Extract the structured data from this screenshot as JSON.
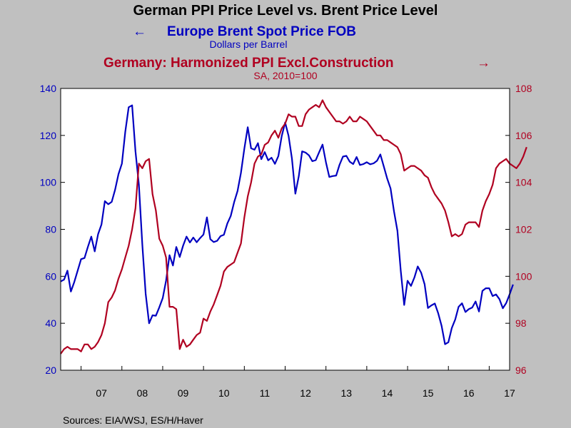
{
  "colors": {
    "background": "#c0c0c0",
    "plot_background": "#ffffff",
    "brent": "#0000c0",
    "ppi": "#b00020",
    "text": "#000000"
  },
  "chart_data": {
    "type": "line",
    "title": "German PPI Price Level vs. Brent Price Level",
    "source": "Sources:  EIA/WSJ, ES/H/Haver",
    "x_tick_labels": [
      "07",
      "08",
      "09",
      "10",
      "11",
      "12",
      "13",
      "14",
      "15",
      "16",
      "17"
    ],
    "x_range": [
      "2006-07",
      "2017-07"
    ],
    "left_axis": {
      "ticks": [
        20,
        40,
        60,
        80,
        100,
        120,
        140
      ],
      "ylim": [
        20,
        140
      ]
    },
    "right_axis": {
      "ticks": [
        96,
        98,
        100,
        102,
        104,
        106,
        108
      ],
      "ylim": [
        96,
        108
      ]
    },
    "series": [
      {
        "name": "Europe Brent Spot Price FOB",
        "unit": "Dollars per Barrel",
        "legend_arrow": "←",
        "axis": "left",
        "color": "#0000c0",
        "start": "2006-07",
        "values": [
          57.8,
          58.6,
          62.4,
          53.5,
          57.6,
          62.4,
          67.3,
          67.8,
          72.5,
          76.9,
          70.6,
          77.9,
          82.1,
          92.0,
          90.7,
          91.7,
          96.8,
          103.5,
          108.0,
          121.5,
          132.0,
          132.8,
          113.2,
          99.0,
          73.5,
          52.5,
          40.0,
          43.4,
          43.2,
          46.8,
          50.7,
          58.2,
          69.0,
          64.6,
          72.5,
          68.2,
          73.0,
          76.9,
          74.4,
          76.5,
          74.5,
          76.3,
          77.8,
          85.1,
          75.8,
          74.6,
          75.1,
          77.1,
          77.7,
          82.5,
          85.7,
          91.5,
          96.3,
          104.1,
          114.3,
          123.5,
          114.5,
          113.9,
          116.7,
          109.9,
          112.9,
          109.4,
          110.5,
          107.9,
          111.2,
          119.7,
          125.5,
          119.8,
          110.2,
          95.2,
          102.6,
          113.2,
          112.7,
          111.5,
          109.0,
          109.5,
          112.9,
          116.1,
          108.5,
          102.3,
          102.7,
          102.9,
          107.5,
          111.0,
          111.3,
          108.8,
          107.8,
          110.8,
          107.4,
          107.8,
          108.6,
          107.7,
          108.1,
          109.2,
          111.9,
          106.8,
          101.6,
          97.4,
          87.7,
          79.4,
          62.3,
          47.8,
          58.1,
          55.9,
          59.5,
          64.2,
          61.5,
          56.6,
          46.5,
          47.6,
          48.4,
          44.3,
          38.9,
          31.1,
          31.9,
          38.0,
          41.6,
          47.0,
          48.5,
          44.8,
          46.0,
          46.7,
          49.3,
          45.0,
          53.8,
          54.9,
          54.9,
          51.6,
          52.3,
          50.3,
          46.4,
          48.6,
          52.3,
          56.5
        ]
      },
      {
        "name": "Germany: Harmonized PPI Excl.Construction",
        "unit": "SA, 2010=100",
        "legend_arrow": "→",
        "axis": "right",
        "color": "#b00020",
        "start": "2006-07",
        "values": [
          96.7,
          96.9,
          97.0,
          96.9,
          96.9,
          96.9,
          96.8,
          97.1,
          97.1,
          96.9,
          97.0,
          97.2,
          97.5,
          98.0,
          98.9,
          99.1,
          99.4,
          99.9,
          100.3,
          100.8,
          101.3,
          102.0,
          102.9,
          104.8,
          104.6,
          104.9,
          105.0,
          103.5,
          102.8,
          101.6,
          101.3,
          100.8,
          98.7,
          98.7,
          98.6,
          96.9,
          97.3,
          97.0,
          97.1,
          97.3,
          97.5,
          97.6,
          98.2,
          98.1,
          98.5,
          98.8,
          99.2,
          99.6,
          100.2,
          100.4,
          100.5,
          100.6,
          101.0,
          101.4,
          102.5,
          103.4,
          104.0,
          104.8,
          105.1,
          105.2,
          105.6,
          105.7,
          106.0,
          106.2,
          105.9,
          106.3,
          106.5,
          106.9,
          106.8,
          106.8,
          106.4,
          106.4,
          106.9,
          107.1,
          107.2,
          107.3,
          107.2,
          107.5,
          107.2,
          107.0,
          106.8,
          106.6,
          106.6,
          106.5,
          106.6,
          106.8,
          106.6,
          106.6,
          106.8,
          106.7,
          106.6,
          106.4,
          106.2,
          106.0,
          106.0,
          105.8,
          105.8,
          105.7,
          105.6,
          105.5,
          105.2,
          104.5,
          104.6,
          104.7,
          104.7,
          104.6,
          104.5,
          104.3,
          104.2,
          103.8,
          103.5,
          103.3,
          103.1,
          102.8,
          102.3,
          101.7,
          101.8,
          101.7,
          101.8,
          102.2,
          102.3,
          102.3,
          102.3,
          102.1,
          102.8,
          103.2,
          103.5,
          103.9,
          104.6,
          104.8,
          104.9,
          105.0,
          104.8,
          104.7,
          104.6,
          104.8,
          105.1,
          105.5
        ]
      }
    ]
  }
}
